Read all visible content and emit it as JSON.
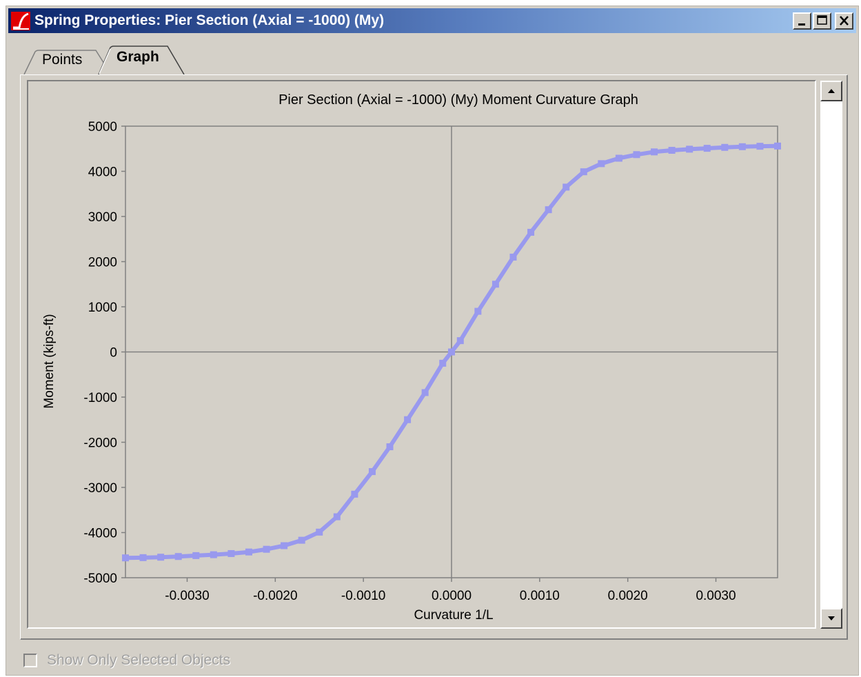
{
  "window": {
    "title": "Spring Properties: Pier Section (Axial = -1000)  (My)",
    "controls": [
      "minimize",
      "maximize",
      "close"
    ]
  },
  "tabs": [
    {
      "label": "Points",
      "active": false
    },
    {
      "label": "Graph",
      "active": true
    }
  ],
  "checkbox": {
    "label": "Show Only Selected Objects",
    "checked": false,
    "enabled": false
  },
  "colors": {
    "series": "#9999ee",
    "face": "#d4d0c8",
    "title_gradient_start": "#0a246a",
    "title_gradient_end": "#a6caf0"
  },
  "chart_data": {
    "type": "line",
    "title": "Pier Section (Axial = -1000)  (My) Moment Curvature Graph",
    "xlabel": "Curvature 1/L",
    "ylabel": "Moment (kips-ft)",
    "xlim": [
      -0.0037,
      0.0037
    ],
    "ylim": [
      -5000,
      5000
    ],
    "xticks": [
      -0.003,
      -0.002,
      -0.001,
      0.0,
      0.001,
      0.002,
      0.003
    ],
    "xtick_labels": [
      "-0.0030",
      "-0.0020",
      "-0.0010",
      "0.0000",
      "0.0010",
      "0.0020",
      "0.0030"
    ],
    "yticks": [
      -5000,
      -4000,
      -3000,
      -2000,
      -1000,
      0,
      1000,
      2000,
      3000,
      4000,
      5000
    ],
    "ytick_labels": [
      "-5000",
      "-4000",
      "-3000",
      "-2000",
      "-1000",
      "0",
      "1000",
      "2000",
      "3000",
      "4000",
      "5000"
    ],
    "grid": false,
    "marker": "square",
    "series": [
      {
        "x": [
          -0.0037,
          -0.0035,
          -0.0033,
          -0.0031,
          -0.0029,
          -0.0027,
          -0.0025,
          -0.0023,
          -0.0021,
          -0.0019,
          -0.0017,
          -0.0015,
          -0.0013,
          -0.0011,
          -0.0009,
          -0.0007,
          -0.0005,
          -0.0003,
          -0.0001,
          0.0,
          0.0001,
          0.0003,
          0.0005,
          0.0007,
          0.0009,
          0.0011,
          0.0013,
          0.0015,
          0.0017,
          0.0019,
          0.0021,
          0.0023,
          0.0025,
          0.0027,
          0.0029,
          0.0031,
          0.0033,
          0.0035,
          0.0037
        ],
        "y": [
          -4560,
          -4555,
          -4545,
          -4530,
          -4510,
          -4490,
          -4465,
          -4430,
          -4370,
          -4290,
          -4170,
          -3990,
          -3650,
          -3150,
          -2650,
          -2100,
          -1500,
          -900,
          -250,
          0,
          250,
          900,
          1500,
          2100,
          2650,
          3150,
          3650,
          3990,
          4170,
          4290,
          4370,
          4430,
          4465,
          4490,
          4510,
          4530,
          4545,
          4555,
          4560
        ]
      }
    ]
  }
}
